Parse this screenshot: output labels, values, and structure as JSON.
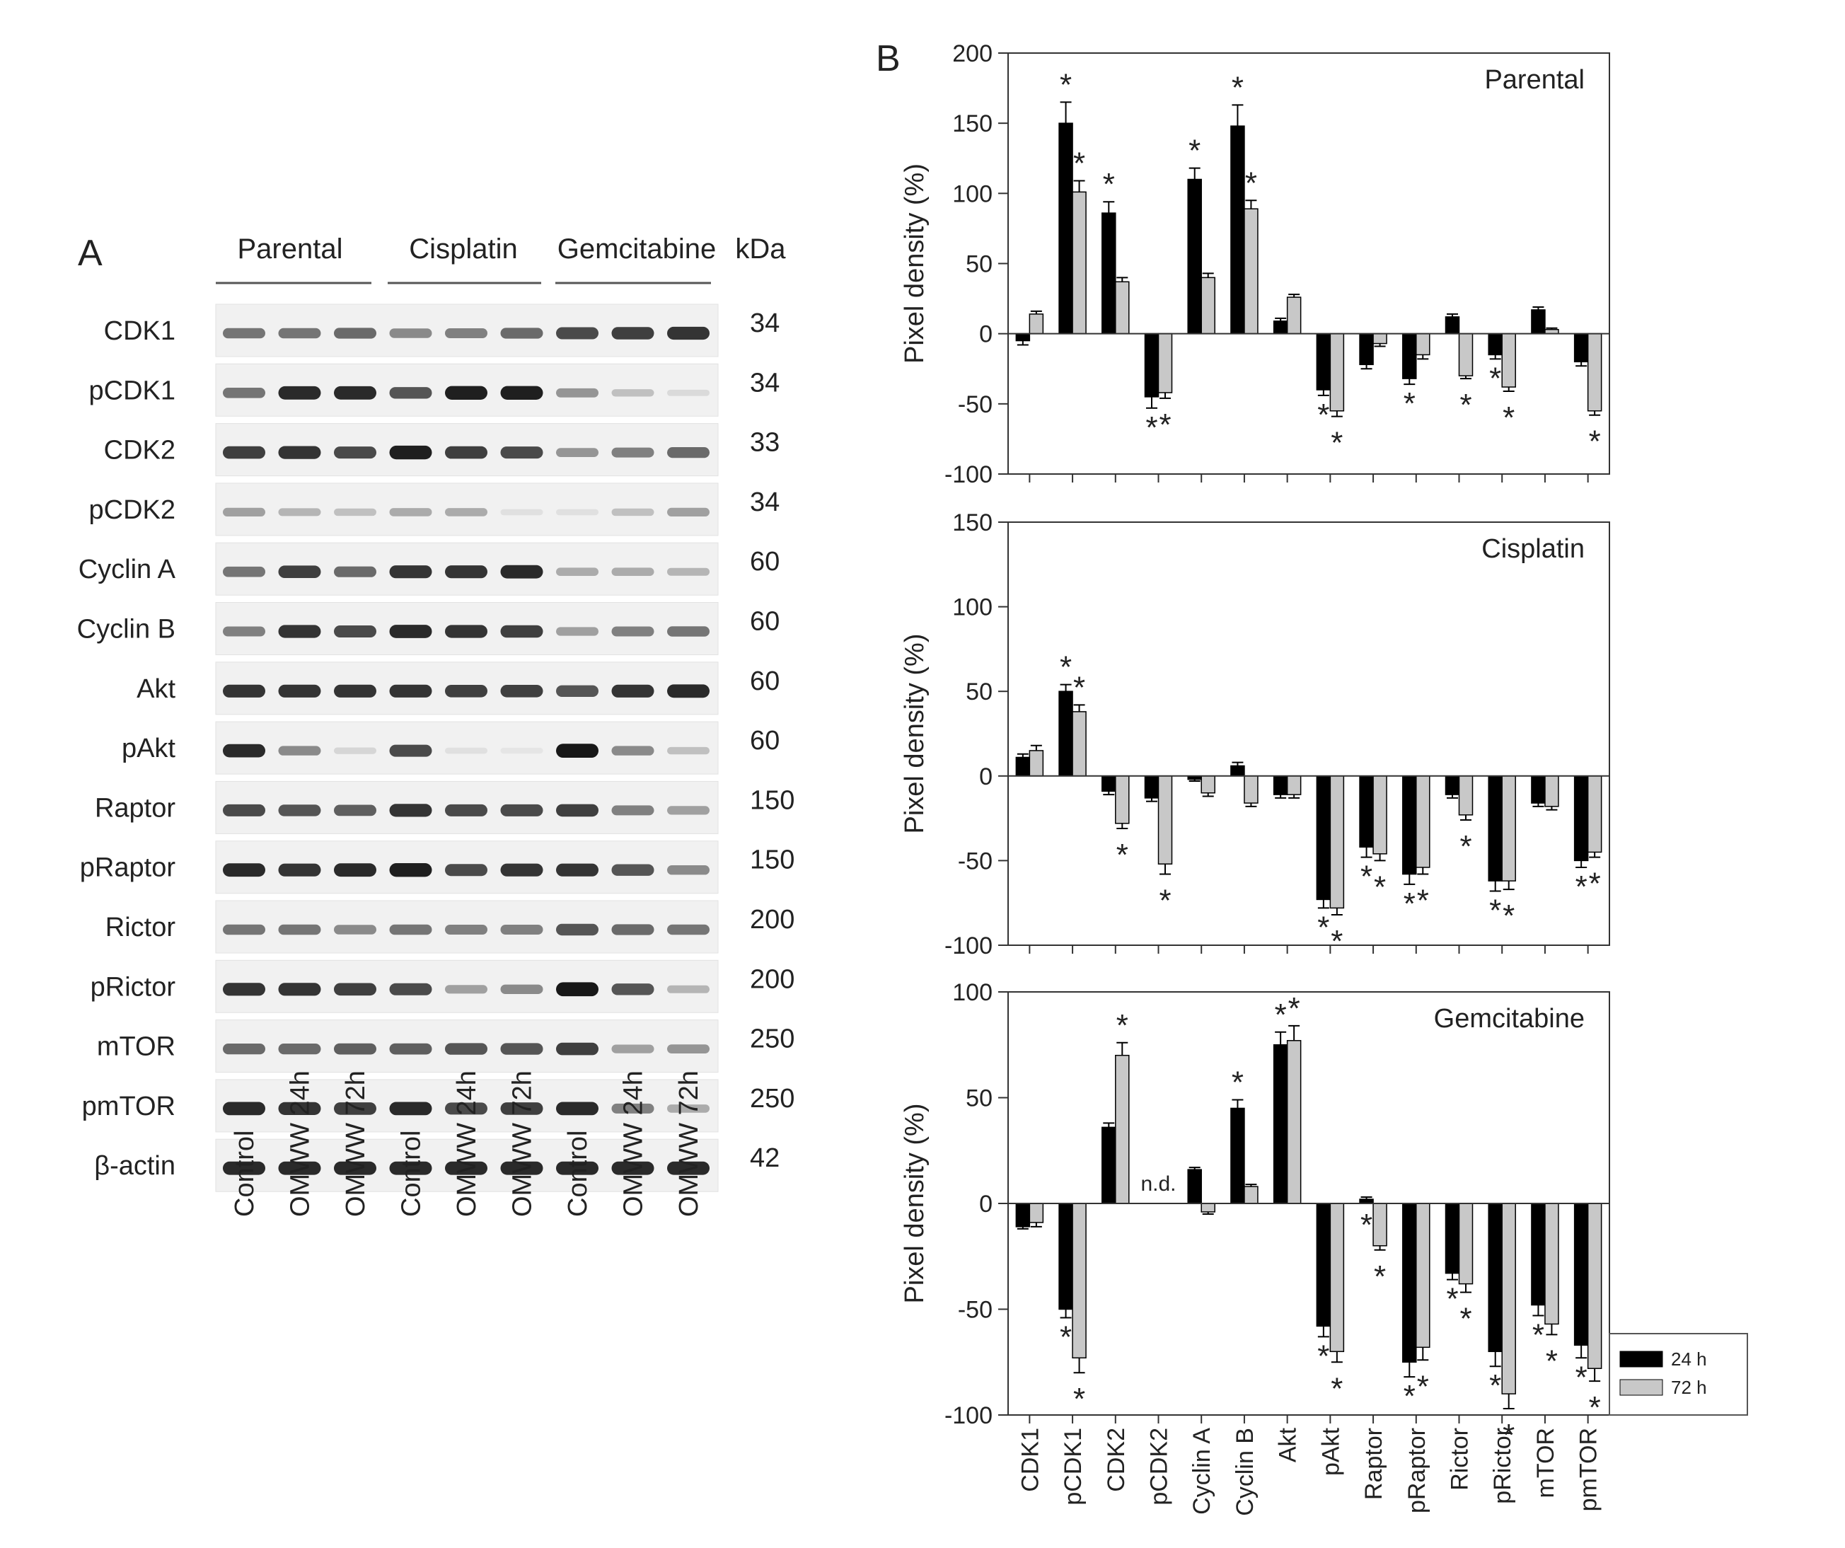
{
  "panel_a": {
    "letter": "A",
    "groups": [
      "Parental",
      "Cisplatin",
      "Gemcitabine"
    ],
    "kda_header": "kDa",
    "proteins": [
      {
        "name": "CDK1",
        "kda": "34",
        "bands": [
          0.55,
          0.55,
          0.6,
          0.45,
          0.5,
          0.6,
          0.75,
          0.8,
          0.85
        ]
      },
      {
        "name": "pCDK1",
        "kda": "34",
        "bands": [
          0.55,
          0.9,
          0.9,
          0.7,
          0.95,
          0.95,
          0.4,
          0.2,
          0.08
        ]
      },
      {
        "name": "CDK2",
        "kda": "33",
        "bands": [
          0.8,
          0.85,
          0.75,
          0.95,
          0.8,
          0.75,
          0.4,
          0.5,
          0.6
        ]
      },
      {
        "name": "pCDK2",
        "kda": "34",
        "bands": [
          0.35,
          0.25,
          0.2,
          0.3,
          0.3,
          0.05,
          0.05,
          0.2,
          0.35
        ]
      },
      {
        "name": "Cyclin A",
        "kda": "60",
        "bands": [
          0.55,
          0.8,
          0.6,
          0.85,
          0.85,
          0.9,
          0.3,
          0.3,
          0.25
        ]
      },
      {
        "name": "Cyclin B",
        "kda": "60",
        "bands": [
          0.5,
          0.85,
          0.75,
          0.9,
          0.85,
          0.8,
          0.35,
          0.5,
          0.55
        ]
      },
      {
        "name": "Akt",
        "kda": "60",
        "bands": [
          0.85,
          0.85,
          0.85,
          0.85,
          0.8,
          0.8,
          0.7,
          0.85,
          0.9
        ]
      },
      {
        "name": "pAkt",
        "kda": "60",
        "bands": [
          0.9,
          0.45,
          0.1,
          0.75,
          0.05,
          0.03,
          0.98,
          0.45,
          0.2
        ]
      },
      {
        "name": "Raptor",
        "kda": "150",
        "bands": [
          0.75,
          0.7,
          0.65,
          0.85,
          0.75,
          0.75,
          0.8,
          0.5,
          0.35
        ]
      },
      {
        "name": "pRaptor",
        "kda": "150",
        "bands": [
          0.9,
          0.85,
          0.9,
          0.95,
          0.75,
          0.85,
          0.85,
          0.7,
          0.45
        ]
      },
      {
        "name": "Rictor",
        "kda": "200",
        "bands": [
          0.55,
          0.55,
          0.45,
          0.55,
          0.5,
          0.5,
          0.7,
          0.6,
          0.55
        ]
      },
      {
        "name": "pRictor",
        "kda": "200",
        "bands": [
          0.85,
          0.85,
          0.8,
          0.75,
          0.35,
          0.45,
          0.98,
          0.7,
          0.25
        ]
      },
      {
        "name": "mTOR",
        "kda": "250",
        "bands": [
          0.6,
          0.6,
          0.65,
          0.65,
          0.7,
          0.7,
          0.8,
          0.35,
          0.4
        ]
      },
      {
        "name": "pmTOR",
        "kda": "250",
        "bands": [
          0.9,
          0.85,
          0.8,
          0.9,
          0.75,
          0.8,
          0.9,
          0.5,
          0.3
        ]
      },
      {
        "name": "β-actin",
        "kda": "42",
        "bands": [
          0.9,
          0.9,
          0.9,
          0.9,
          0.9,
          0.9,
          0.9,
          0.9,
          0.9
        ]
      }
    ],
    "lanes": [
      "Control",
      "OMWW 24h",
      "OMWW 72h",
      "Control",
      "OMWW 24h",
      "OMWW 72h",
      "Control",
      "OMWW 24h",
      "OMWW 72h"
    ]
  },
  "chart_data": {
    "type": "bar",
    "panel_letter": "B",
    "ylabel": "Pixel density (%)",
    "categories": [
      "CDK1",
      "pCDK1",
      "CDK2",
      "pCDK2",
      "Cyclin A",
      "Cyclin B",
      "Akt",
      "pAkt",
      "Raptor",
      "pRaptor",
      "Rictor",
      "pRictor",
      "mTOR",
      "pmTOR"
    ],
    "legend": {
      "position": "lower-right",
      "series": [
        "24 h",
        "72 h"
      ]
    },
    "series_colors": {
      "24 h": "#000000",
      "72 h": "#c8c8c8"
    },
    "subplots": [
      {
        "title": "Parental",
        "ylim": [
          -100,
          200
        ],
        "yticks": [
          -100,
          -50,
          0,
          50,
          100,
          150,
          200
        ],
        "series": [
          {
            "name": "24 h",
            "values": [
              -5,
              150,
              86,
              -45,
              110,
              148,
              9,
              -40,
              -22,
              -32,
              12,
              -15,
              17,
              -20
            ],
            "errors": [
              3,
              15,
              8,
              8,
              8,
              15,
              2,
              4,
              3,
              4,
              2,
              3,
              2,
              3
            ]
          },
          {
            "name": "72 h",
            "values": [
              14,
              101,
              37,
              -42,
              40,
              89,
              26,
              -55,
              -7,
              -15,
              -30,
              -38,
              3,
              -55
            ],
            "errors": [
              2,
              8,
              3,
              4,
              3,
              6,
              2,
              4,
              2,
              3,
              2,
              3,
              1,
              3
            ]
          }
        ],
        "stars": [
          {
            "text": "*",
            "category": 1,
            "series": 0,
            "pos": "above"
          },
          {
            "text": "*",
            "category": 1,
            "series": 1,
            "pos": "above"
          },
          {
            "text": "*",
            "category": 2,
            "series": 0,
            "pos": "above"
          },
          {
            "text": "*",
            "category": 3,
            "series": 0,
            "pos": "below"
          },
          {
            "text": "*",
            "category": 3,
            "series": 1,
            "pos": "below"
          },
          {
            "text": "*",
            "category": 4,
            "series": 0,
            "pos": "above"
          },
          {
            "text": "*",
            "category": 5,
            "series": 0,
            "pos": "above"
          },
          {
            "text": "*",
            "category": 5,
            "series": 1,
            "pos": "above"
          },
          {
            "text": "*",
            "category": 7,
            "series": 0,
            "pos": "below"
          },
          {
            "text": "*",
            "category": 7,
            "series": 1,
            "pos": "below"
          },
          {
            "text": "*",
            "category": 9,
            "series": 0,
            "pos": "below"
          },
          {
            "text": "*",
            "category": 10,
            "series": 1,
            "pos": "below"
          },
          {
            "text": "*",
            "category": 11,
            "series": 0,
            "pos": "below"
          },
          {
            "text": "*",
            "category": 11,
            "series": 1,
            "pos": "below"
          },
          {
            "text": "*",
            "category": 13,
            "series": 1,
            "pos": "below"
          }
        ],
        "notes": []
      },
      {
        "title": "Cisplatin",
        "ylim": [
          -100,
          150
        ],
        "yticks": [
          -100,
          -50,
          0,
          50,
          100,
          150
        ],
        "series": [
          {
            "name": "24 h",
            "values": [
              11,
              50,
              -9,
              -13,
              -2,
              6,
              -11,
              -73,
              -42,
              -58,
              -11,
              -62,
              -16,
              -50
            ],
            "errors": [
              2,
              4,
              2,
              2,
              1,
              2,
              2,
              5,
              6,
              6,
              2,
              6,
              2,
              4
            ]
          },
          {
            "name": "72 h",
            "values": [
              15,
              38,
              -28,
              -52,
              -10,
              -16,
              -11,
              -78,
              -46,
              -54,
              -23,
              -62,
              -18,
              -45
            ],
            "errors": [
              3,
              4,
              3,
              6,
              2,
              2,
              2,
              4,
              4,
              4,
              3,
              5,
              2,
              3
            ]
          }
        ],
        "stars": [
          {
            "text": "*",
            "category": 1,
            "series": 0,
            "pos": "above"
          },
          {
            "text": "*",
            "category": 1,
            "series": 1,
            "pos": "above"
          },
          {
            "text": "*",
            "category": 2,
            "series": 1,
            "pos": "below"
          },
          {
            "text": "*",
            "category": 3,
            "series": 1,
            "pos": "below"
          },
          {
            "text": "*",
            "category": 7,
            "series": 0,
            "pos": "below"
          },
          {
            "text": "*",
            "category": 7,
            "series": 1,
            "pos": "below"
          },
          {
            "text": "*",
            "category": 8,
            "series": 0,
            "pos": "below"
          },
          {
            "text": "*",
            "category": 8,
            "series": 1,
            "pos": "below"
          },
          {
            "text": "*",
            "category": 9,
            "series": 0,
            "pos": "below"
          },
          {
            "text": "*",
            "category": 9,
            "series": 1,
            "pos": "below"
          },
          {
            "text": "*",
            "category": 10,
            "series": 1,
            "pos": "below"
          },
          {
            "text": "*",
            "category": 11,
            "series": 0,
            "pos": "below"
          },
          {
            "text": "*",
            "category": 11,
            "series": 1,
            "pos": "below"
          },
          {
            "text": "*",
            "category": 13,
            "series": 0,
            "pos": "below"
          },
          {
            "text": "*",
            "category": 13,
            "series": 1,
            "pos": "below"
          }
        ],
        "notes": []
      },
      {
        "title": "Gemcitabine",
        "ylim": [
          -100,
          100
        ],
        "yticks": [
          -100,
          -50,
          0,
          50,
          100
        ],
        "series": [
          {
            "name": "24 h",
            "values": [
              -11,
              -50,
              36,
              null,
              16,
              45,
              75,
              -58,
              2,
              -75,
              -33,
              -70,
              -48,
              -67
            ],
            "errors": [
              1,
              4,
              2,
              null,
              1,
              4,
              6,
              5,
              1,
              7,
              3,
              7,
              5,
              6
            ]
          },
          {
            "name": "72 h",
            "values": [
              -9,
              -73,
              70,
              null,
              -4,
              8,
              77,
              -70,
              -20,
              -68,
              -38,
              -90,
              -57,
              -78
            ],
            "errors": [
              2,
              7,
              6,
              null,
              1,
              1,
              7,
              5,
              2,
              6,
              4,
              7,
              5,
              6
            ]
          }
        ],
        "stars": [
          {
            "text": "*",
            "category": 1,
            "series": 0,
            "pos": "below"
          },
          {
            "text": "*",
            "category": 1,
            "series": 1,
            "pos": "below"
          },
          {
            "text": "*",
            "category": 2,
            "series": 1,
            "pos": "above"
          },
          {
            "text": "*",
            "category": 5,
            "series": 0,
            "pos": "above"
          },
          {
            "text": "*",
            "category": 6,
            "series": 0,
            "pos": "above"
          },
          {
            "text": "*",
            "category": 6,
            "series": 1,
            "pos": "above"
          },
          {
            "text": "*",
            "category": 7,
            "series": 0,
            "pos": "below"
          },
          {
            "text": "*",
            "category": 7,
            "series": 1,
            "pos": "below"
          },
          {
            "text": "*",
            "category": 8,
            "series": 0,
            "pos": "below"
          },
          {
            "text": "*",
            "category": 8,
            "series": 1,
            "pos": "below"
          },
          {
            "text": "*",
            "category": 9,
            "series": 0,
            "pos": "below"
          },
          {
            "text": "*",
            "category": 9,
            "series": 1,
            "pos": "below"
          },
          {
            "text": "*",
            "category": 10,
            "series": 0,
            "pos": "below"
          },
          {
            "text": "*",
            "category": 10,
            "series": 1,
            "pos": "below"
          },
          {
            "text": "*",
            "category": 11,
            "series": 0,
            "pos": "below"
          },
          {
            "text": "*",
            "category": 11,
            "series": 1,
            "pos": "below"
          },
          {
            "text": "*",
            "category": 12,
            "series": 0,
            "pos": "below"
          },
          {
            "text": "*",
            "category": 12,
            "series": 1,
            "pos": "below"
          },
          {
            "text": "*",
            "category": 13,
            "series": 0,
            "pos": "below"
          },
          {
            "text": "*",
            "category": 13,
            "series": 1,
            "pos": "below"
          }
        ],
        "notes": [
          {
            "text": "n.d.",
            "category": 3
          }
        ]
      }
    ]
  }
}
